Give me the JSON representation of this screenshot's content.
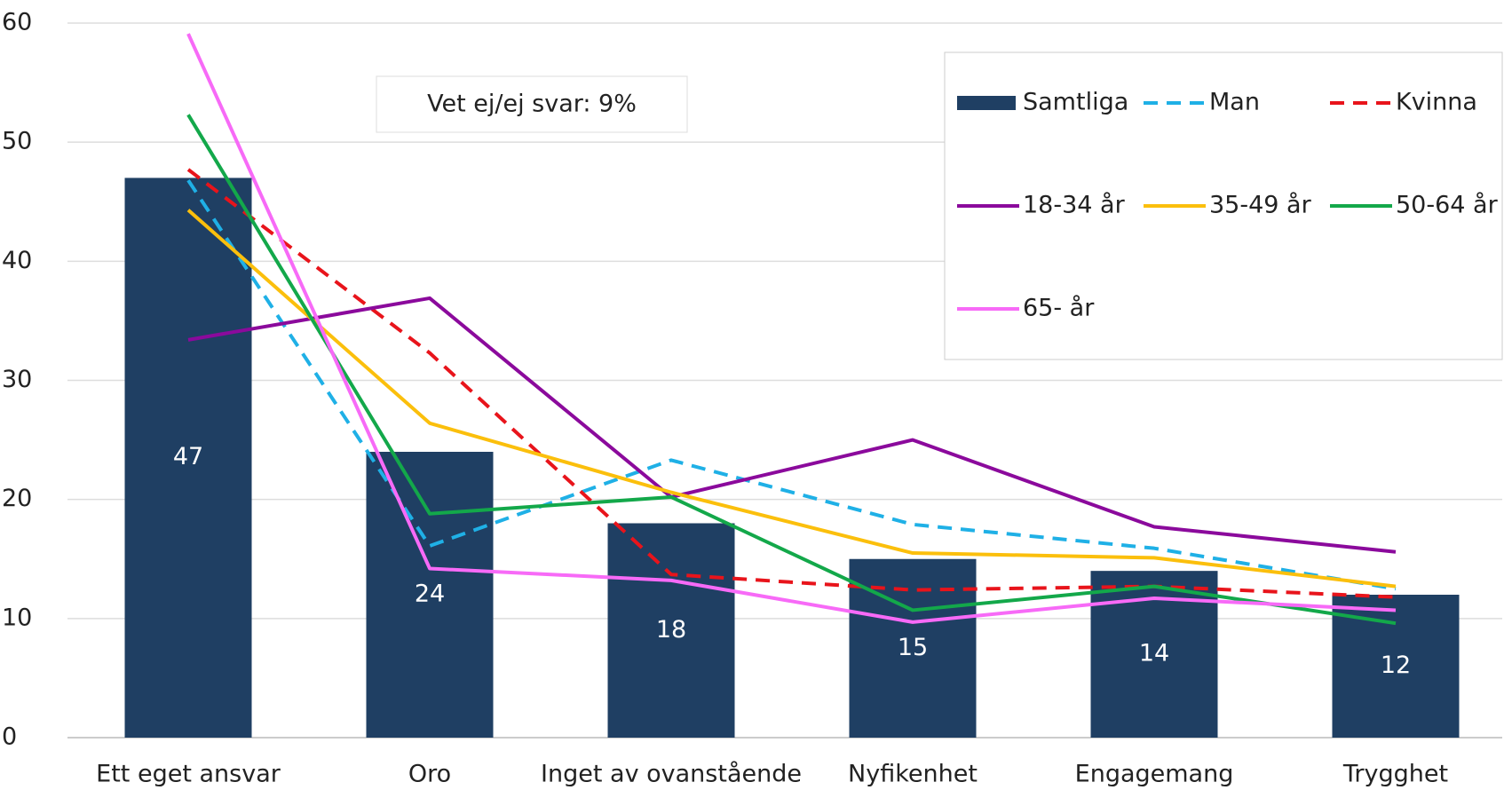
{
  "chart_data": {
    "type": "bar",
    "annotation": "Vet ej/ej svar: 9%",
    "categories": [
      "Ett eget ansvar",
      "Oro",
      "Inget av ovanstående",
      "Nyfikenhet",
      "Engagemang",
      "Trygghet"
    ],
    "series": [
      {
        "name": "Samtliga",
        "type": "bar",
        "color": "#1f3f63",
        "values": [
          47,
          24,
          18,
          15,
          14,
          12
        ]
      },
      {
        "name": "Man",
        "type": "line",
        "dashed": true,
        "color": "#1fb0e6",
        "values": [
          46.8,
          16.1,
          23.3,
          17.9,
          15.9,
          12.5
        ]
      },
      {
        "name": "Kvinna",
        "type": "line",
        "dashed": true,
        "color": "#e8141b",
        "values": [
          47.7,
          32.3,
          13.7,
          12.4,
          12.7,
          11.8
        ]
      },
      {
        "name": "18-34 år",
        "type": "line",
        "color": "#8b0a9c",
        "values": [
          33.4,
          36.9,
          20.2,
          25.0,
          17.7,
          15.6
        ]
      },
      {
        "name": "35-49 år",
        "type": "line",
        "color": "#fbbf0c",
        "values": [
          44.3,
          26.4,
          20.6,
          15.5,
          15.1,
          12.7
        ]
      },
      {
        "name": "50-64 år",
        "type": "line",
        "color": "#13a84a",
        "values": [
          52.3,
          18.8,
          20.2,
          10.7,
          12.7,
          9.6
        ]
      },
      {
        "name": "65- år",
        "type": "line",
        "color": "#f76af7",
        "values": [
          59.1,
          14.2,
          13.2,
          9.7,
          11.7,
          10.7
        ]
      }
    ],
    "ylim": [
      0,
      60
    ],
    "yticks": [
      0,
      10,
      20,
      30,
      40,
      50,
      60
    ],
    "grid": true
  }
}
